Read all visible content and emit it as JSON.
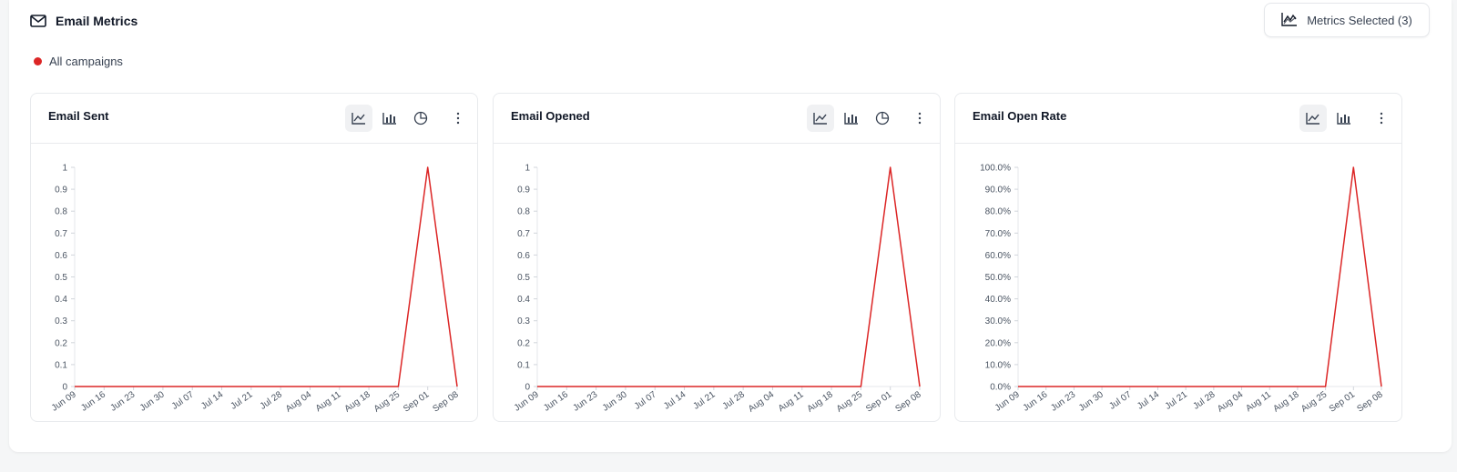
{
  "header": {
    "title": "Email Metrics",
    "icon": "mail-icon"
  },
  "metrics_button": {
    "label": "Metrics Selected (3)",
    "icon": "line-chart-icon"
  },
  "legend": {
    "label": "All campaigns",
    "color": "#dc2626"
  },
  "cards": [
    {
      "title": "Email Sent",
      "tools": [
        "line-chart-icon",
        "bar-chart-icon",
        "pie-chart-icon",
        "more-icon"
      ],
      "active_tool": "line-chart-icon"
    },
    {
      "title": "Email Opened",
      "tools": [
        "line-chart-icon",
        "bar-chart-icon",
        "pie-chart-icon",
        "more-icon"
      ],
      "active_tool": "line-chart-icon"
    },
    {
      "title": "Email Open Rate",
      "tools": [
        "line-chart-icon",
        "bar-chart-icon",
        "more-icon"
      ],
      "active_tool": "line-chart-icon"
    }
  ],
  "chart_data": [
    {
      "type": "line",
      "title": "Email Sent",
      "x": [
        "Jun 09",
        "Jun 16",
        "Jun 23",
        "Jun 30",
        "Jul 07",
        "Jul 14",
        "Jul 21",
        "Jul 28",
        "Aug 04",
        "Aug 11",
        "Aug 18",
        "Aug 25",
        "Sep 01",
        "Sep 08"
      ],
      "series": [
        {
          "name": "All campaigns",
          "color": "#dc2626",
          "values": [
            0,
            0,
            0,
            0,
            0,
            0,
            0,
            0,
            0,
            0,
            0,
            0,
            1,
            0
          ]
        }
      ],
      "ylim": [
        0,
        1
      ],
      "yticks": [
        "0",
        "0.1",
        "0.2",
        "0.3",
        "0.4",
        "0.5",
        "0.6",
        "0.7",
        "0.8",
        "0.9",
        "1"
      ]
    },
    {
      "type": "line",
      "title": "Email Opened",
      "x": [
        "Jun 09",
        "Jun 16",
        "Jun 23",
        "Jun 30",
        "Jul 07",
        "Jul 14",
        "Jul 21",
        "Jul 28",
        "Aug 04",
        "Aug 11",
        "Aug 18",
        "Aug 25",
        "Sep 01",
        "Sep 08"
      ],
      "series": [
        {
          "name": "All campaigns",
          "color": "#dc2626",
          "values": [
            0,
            0,
            0,
            0,
            0,
            0,
            0,
            0,
            0,
            0,
            0,
            0,
            1,
            0
          ]
        }
      ],
      "ylim": [
        0,
        1
      ],
      "yticks": [
        "0",
        "0.1",
        "0.2",
        "0.3",
        "0.4",
        "0.5",
        "0.6",
        "0.7",
        "0.8",
        "0.9",
        "1"
      ]
    },
    {
      "type": "line",
      "title": "Email Open Rate",
      "x": [
        "Jun 09",
        "Jun 16",
        "Jun 23",
        "Jun 30",
        "Jul 07",
        "Jul 14",
        "Jul 21",
        "Jul 28",
        "Aug 04",
        "Aug 11",
        "Aug 18",
        "Aug 25",
        "Sep 01",
        "Sep 08"
      ],
      "series": [
        {
          "name": "All campaigns",
          "color": "#dc2626",
          "values": [
            0,
            0,
            0,
            0,
            0,
            0,
            0,
            0,
            0,
            0,
            0,
            0,
            100,
            0
          ]
        }
      ],
      "ylim": [
        0,
        100
      ],
      "yticks": [
        "0.0%",
        "10.0%",
        "20.0%",
        "30.0%",
        "40.0%",
        "50.0%",
        "60.0%",
        "70.0%",
        "80.0%",
        "90.0%",
        "100.0%"
      ]
    }
  ]
}
